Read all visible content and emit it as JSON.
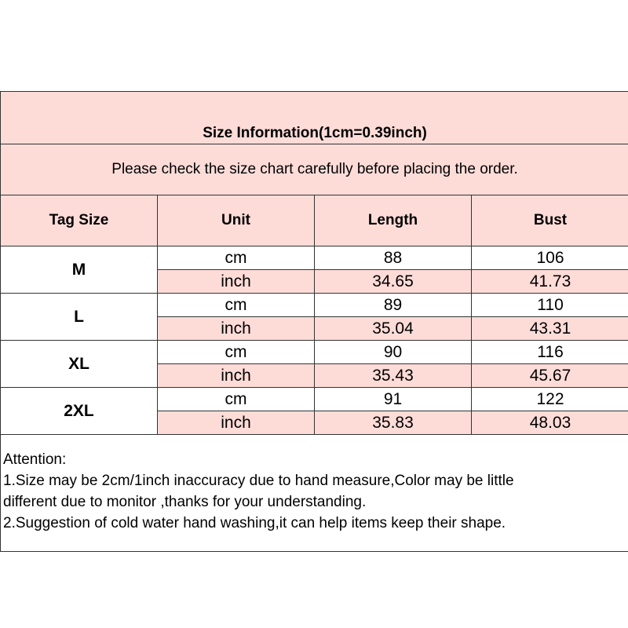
{
  "title": "Size Information(1cm=0.39inch)",
  "subtitle": "Please check the size chart carefully before placing the order.",
  "headers": [
    "Tag Size",
    "Unit",
    "Length",
    "Bust"
  ],
  "colors": {
    "pink": "#fddcd8",
    "white": "#ffffff",
    "border": "#333333"
  },
  "rows": [
    {
      "size": "M",
      "cm": {
        "unit": "cm",
        "length": "88",
        "bust": "106"
      },
      "inch": {
        "unit": "inch",
        "length": "34.65",
        "bust": "41.73"
      }
    },
    {
      "size": "L",
      "cm": {
        "unit": "cm",
        "length": "89",
        "bust": "110"
      },
      "inch": {
        "unit": "inch",
        "length": "35.04",
        "bust": "43.31"
      }
    },
    {
      "size": "XL",
      "cm": {
        "unit": "cm",
        "length": "90",
        "bust": "116"
      },
      "inch": {
        "unit": "inch",
        "length": "35.43",
        "bust": "45.67"
      }
    },
    {
      "size": "2XL",
      "cm": {
        "unit": "cm",
        "length": "91",
        "bust": "122"
      },
      "inch": {
        "unit": "inch",
        "length": "35.83",
        "bust": "48.03"
      }
    }
  ],
  "attention": {
    "heading": "Attention:",
    "lines": [
      "1.Size may be 2cm/1inch inaccuracy due to hand measure,Color may be little",
      "different due to monitor ,thanks for your understanding.",
      "2.Suggestion of cold water hand washing,it can help items keep their shape."
    ]
  }
}
